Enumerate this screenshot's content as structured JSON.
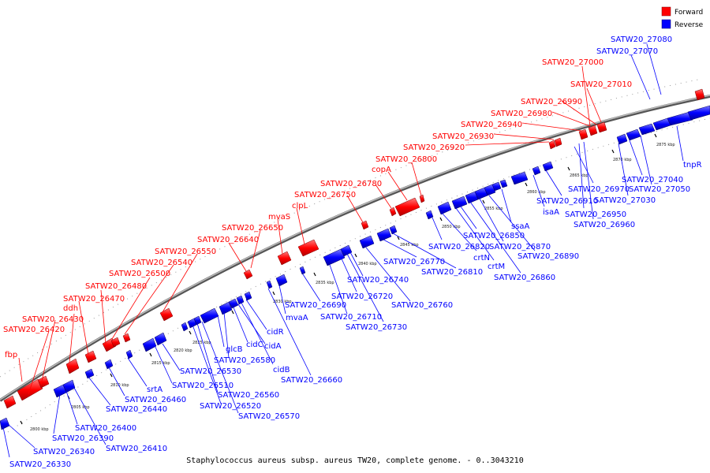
{
  "caption": "Staphylococcus aureus subsp. aureus TW20, complete genome. - 0..3043210",
  "legend": [
    {
      "label": "Forward",
      "color": "#ff0000"
    },
    {
      "label": "Reverse",
      "color": "#0000ff"
    }
  ],
  "colors": {
    "forward": "#ff0000",
    "reverse": "#0000ff",
    "backbone": "#888888"
  },
  "kbp_ticks": [
    "2800 kbp",
    "2805 kbp",
    "2810 kbp",
    "2815 kbp",
    "2820 kbp",
    "2825 kbp",
    "2830 kbp",
    "2835 kbp",
    "2840 kbp",
    "2845 kbp",
    "2850 kbp",
    "2855 kbp",
    "2860 kbp",
    "2865 kbp",
    "2870 kbp",
    "2875 kbp"
  ],
  "forward_labels": [
    "fbp",
    "SATW20_26420",
    "SATW20_26430",
    "ddh",
    "SATW20_26470",
    "SATW20_26480",
    "SATW20_26500",
    "SATW20_26540",
    "SATW20_26550",
    "SATW20_26640",
    "SATW20_26650",
    "mvaS",
    "clpL",
    "SATW20_26750",
    "SATW20_26780",
    "copA",
    "SATW20_26800",
    "SATW20_26920",
    "SATW20_26930",
    "SATW20_26940",
    "SATW20_26980",
    "SATW20_26990",
    "SATW20_27010",
    "SATW20_27000"
  ],
  "reverse_labels": [
    "SATW20_26330",
    "SATW20_26340",
    "SATW20_26390",
    "SATW20_26400",
    "SATW20_26410",
    "SATW20_26440",
    "srtA",
    "SATW20_26460",
    "SATW20_26510",
    "SATW20_26520",
    "SATW20_26530",
    "SATW20_26560",
    "SATW20_26570",
    "glcB",
    "SATW20_26580",
    "cidC",
    "cidA",
    "cidR",
    "cidB",
    "SATW20_26660",
    "mvaA",
    "SATW20_26690",
    "SATW20_26710",
    "SATW20_26720",
    "SATW20_26730",
    "SATW20_26740",
    "SATW20_26760",
    "SATW20_26770",
    "SATW20_26810",
    "SATW20_26820",
    "crtN",
    "crtM",
    "SATW20_26850",
    "ssaA",
    "SATW20_26860",
    "SATW20_26870",
    "SATW20_26890",
    "isaA",
    "SATW20_26910",
    "SATW20_26950",
    "SATW20_26960",
    "SATW20_26970",
    "SATW20_27030",
    "SATW20_27040",
    "SATW20_27050",
    "tnpR",
    "SATW20_27070",
    "SATW20_27080"
  ]
}
